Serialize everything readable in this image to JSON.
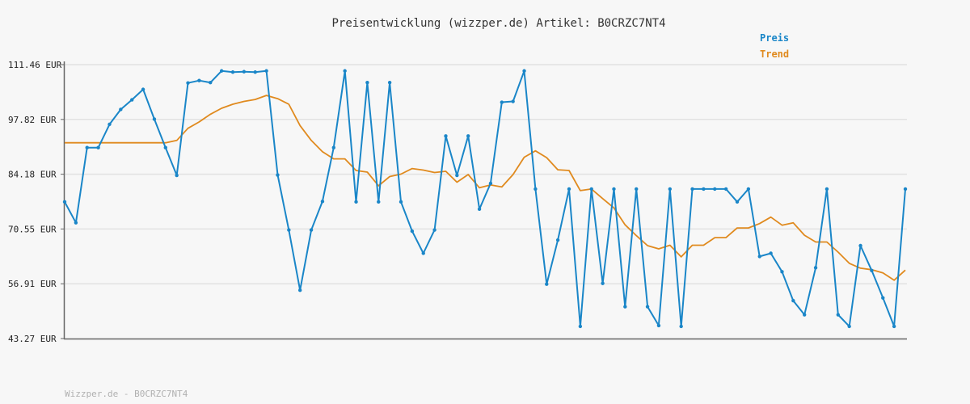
{
  "chart_data": {
    "type": "line",
    "title": "Preisentwicklung (wizzper.de) Artikel: B0CRZC7NT4",
    "ylim": [
      43.27,
      111.46
    ],
    "yticks": [
      "111.46 EUR",
      "97.82 EUR",
      "84.18 EUR",
      "70.55 EUR",
      "56.91 EUR",
      "43.27 EUR"
    ],
    "ytick_values": [
      111.46,
      97.82,
      84.18,
      70.55,
      56.91,
      43.27
    ],
    "grid": true,
    "legend_placement": "top-right",
    "series": [
      {
        "name": "Preis",
        "color": "#1a86c8",
        "values": [
          77.3,
          72.1,
          90.8,
          90.8,
          96.6,
          100.3,
          102.7,
          105.3,
          97.9,
          90.8,
          83.9,
          106.9,
          107.5,
          107.0,
          109.9,
          109.6,
          109.7,
          109.6,
          109.9,
          84.0,
          70.3,
          55.3,
          70.3,
          77.4,
          90.8,
          109.9,
          77.3,
          107.0,
          77.3,
          107.0,
          77.3,
          70.0,
          64.5,
          70.3,
          93.7,
          83.9,
          93.7,
          75.5,
          81.9,
          102.1,
          102.3,
          109.9,
          80.5,
          56.8,
          67.8,
          80.5,
          46.3,
          80.5,
          57.0,
          80.5,
          51.2,
          80.5,
          51.2,
          46.5,
          80.5,
          46.3,
          80.5,
          80.5,
          80.5,
          80.5,
          77.3,
          80.5,
          63.7,
          64.5,
          59.9,
          52.7,
          49.2,
          60.9,
          80.5,
          49.2,
          46.3,
          66.4,
          60.2,
          53.4,
          46.3,
          80.5
        ]
      },
      {
        "name": "Trend",
        "color": "#e08a1e",
        "values": [
          92.0,
          92.0,
          92.0,
          92.0,
          92.0,
          92.0,
          92.0,
          92.0,
          92.0,
          92.0,
          92.6,
          95.6,
          97.2,
          99.1,
          100.6,
          101.6,
          102.3,
          102.8,
          103.8,
          103.0,
          101.6,
          96.3,
          92.6,
          89.8,
          88.0,
          88.0,
          85.1,
          84.7,
          81.3,
          83.6,
          84.2,
          85.6,
          85.2,
          84.6,
          84.9,
          82.2,
          84.1,
          80.8,
          81.5,
          81.0,
          84.1,
          88.4,
          90.0,
          88.3,
          85.3,
          85.1,
          80.1,
          80.5,
          78.1,
          75.8,
          71.6,
          68.9,
          66.4,
          65.6,
          66.5,
          63.6,
          66.5,
          66.5,
          68.4,
          68.4,
          70.8,
          70.8,
          71.9,
          73.5,
          71.5,
          72.1,
          69.0,
          67.3,
          67.3,
          64.8,
          62.0,
          60.8,
          60.4,
          59.6,
          57.8,
          60.3
        ]
      }
    ],
    "footer": "Wizzper.de - B0CRZC7NT4"
  }
}
